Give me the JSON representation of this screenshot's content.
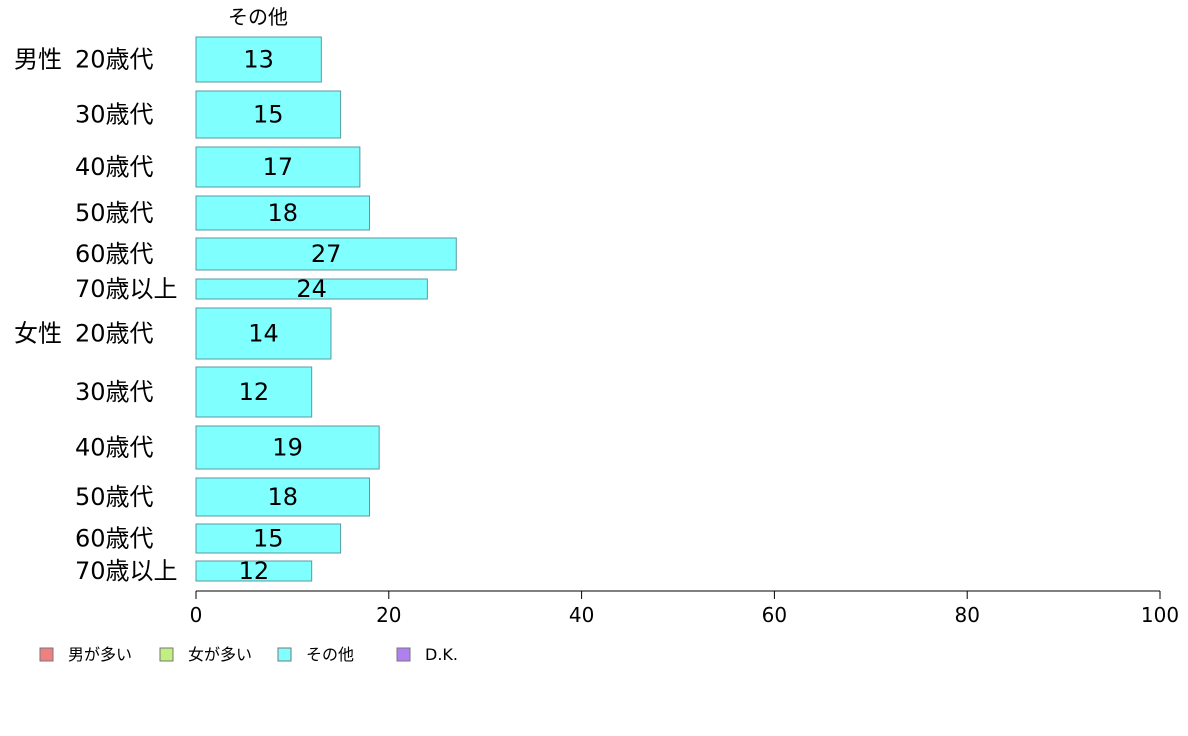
{
  "chart_data": {
    "type": "bar",
    "orientation": "horizontal",
    "stacked": true,
    "series_header": "その他",
    "groups": [
      "男性",
      "女性"
    ],
    "categories": [
      "20歳代",
      "30歳代",
      "40歳代",
      "50歳代",
      "60歳代",
      "70歳以上",
      "20歳代",
      "30歳代",
      "40歳代",
      "50歳代",
      "60歳代",
      "70歳以上"
    ],
    "category_groups": [
      0,
      0,
      0,
      0,
      0,
      0,
      1,
      1,
      1,
      1,
      1,
      1
    ],
    "series": [
      {
        "name": "男が多い",
        "color": "#f08080",
        "values": [
          0,
          0,
          0,
          0,
          0,
          0,
          0,
          0,
          0,
          0,
          0,
          0
        ]
      },
      {
        "name": "女が多い",
        "color": "#c0f080",
        "values": [
          0,
          0,
          0,
          0,
          0,
          0,
          0,
          0,
          0,
          0,
          0,
          0
        ]
      },
      {
        "name": "その他",
        "color": "#80ffff",
        "values": [
          13,
          15,
          17,
          18,
          27,
          24,
          14,
          12,
          19,
          18,
          15,
          12
        ]
      },
      {
        "name": "D.K.",
        "color": "#b080f0",
        "values": [
          0,
          0,
          0,
          0,
          0,
          0,
          0,
          0,
          0,
          0,
          0,
          0
        ]
      }
    ],
    "xlim": [
      0,
      100
    ],
    "xticks": [
      0,
      20,
      40,
      60,
      80,
      100
    ],
    "grid": false,
    "legend_position": "bottom-left"
  }
}
